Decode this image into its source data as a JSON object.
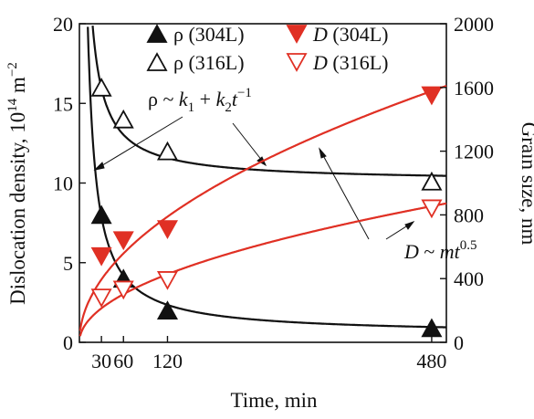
{
  "chart_data": {
    "type": "scatter",
    "title": "",
    "xlabel": "Time, min",
    "ylabel_left": {
      "main": "Dislocation density, 10",
      "exp": "14",
      "unit": " m",
      "unit_exp": "−2"
    },
    "ylabel_right": "Grain size, nm",
    "x_range": [
      0,
      500
    ],
    "y_left_range": [
      0,
      20
    ],
    "y_right_range": [
      0,
      2000
    ],
    "x_ticks": [
      30,
      60,
      120,
      480
    ],
    "y_left_ticks": [
      0,
      5,
      10,
      15,
      20
    ],
    "y_right_ticks": [
      0,
      400,
      800,
      1200,
      1600,
      2000
    ],
    "grid": false,
    "legend_position": "top",
    "colors": {
      "black": "#111111",
      "red": "#e03024"
    },
    "series": [
      {
        "name": "ρ (304L)",
        "axis": "left",
        "marker": "triangle-up",
        "filled": true,
        "color": "#111111",
        "x": [
          30,
          60,
          120,
          480
        ],
        "y": [
          8,
          4,
          2,
          0.9
        ]
      },
      {
        "name": "ρ (316L)",
        "axis": "left",
        "marker": "triangle-up",
        "filled": false,
        "color": "#111111",
        "x": [
          30,
          60,
          120,
          480
        ],
        "y": [
          16,
          14,
          12,
          10.1
        ]
      },
      {
        "name": "D (304L)",
        "axis": "right",
        "marker": "triangle-down",
        "filled": true,
        "color": "#e03024",
        "x": [
          30,
          60,
          120,
          480
        ],
        "y": [
          540,
          640,
          710,
          1550
        ]
      },
      {
        "name": "D (316L)",
        "axis": "right",
        "marker": "triangle-down",
        "filled": false,
        "color": "#e03024",
        "x": [
          30,
          60,
          120,
          480
        ],
        "y": [
          280,
          330,
          390,
          840
        ]
      }
    ],
    "fits": [
      {
        "name": "rho-304L-fit",
        "axis": "left",
        "model": "k1 + k2/t",
        "k1": 0.5,
        "k2": 222,
        "color": "#111111"
      },
      {
        "name": "rho-316L-fit",
        "axis": "left",
        "model": "k1 + k2/t",
        "k1": 10.1,
        "k2": 176,
        "color": "#111111"
      },
      {
        "name": "D-304L-fit",
        "axis": "right",
        "model": "m*t^0.5",
        "m": 72,
        "color": "#e03024"
      },
      {
        "name": "D-316L-fit",
        "axis": "right",
        "model": "m*t^0.5",
        "m": 39,
        "color": "#e03024"
      }
    ],
    "legend": [
      {
        "sym": "ρ",
        "italic": false,
        "rest": " (304L)",
        "series": 0
      },
      {
        "sym": "D",
        "italic": true,
        "rest": " (304L)",
        "series": 2
      },
      {
        "sym": "ρ",
        "italic": false,
        "rest": " (316L)",
        "series": 1
      },
      {
        "sym": "D",
        "italic": true,
        "rest": " (316L)",
        "series": 3
      }
    ],
    "annotations": [
      {
        "id": "rho-formula",
        "text": "ρ ~ k1 + k2t−1"
      },
      {
        "id": "d-formula",
        "text": "D ~ mt0.5"
      }
    ]
  }
}
